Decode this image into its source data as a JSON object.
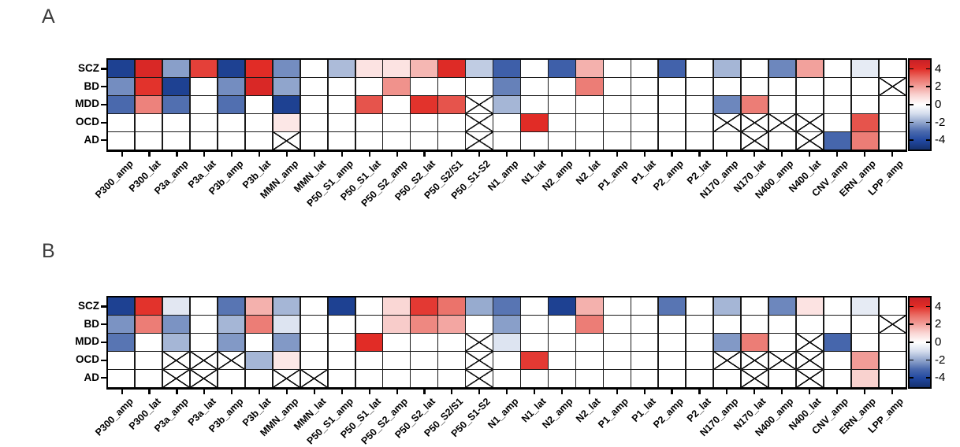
{
  "figure": {
    "background": "#ffffff",
    "crossed_cell_meaning": "cell marked with a diagonal X cross (no data / not significant)"
  },
  "colormap": {
    "description": "diverging red-white-blue heatmap scale",
    "stops": [
      [
        -5,
        "#16316e"
      ],
      [
        -4,
        "#2148a1"
      ],
      [
        -3,
        "#4a69ad"
      ],
      [
        -2,
        "#90a5cc"
      ],
      [
        -1,
        "#d5dded"
      ],
      [
        0,
        "#ffffff"
      ],
      [
        1,
        "#fad7d5"
      ],
      [
        2,
        "#f2a19c"
      ],
      [
        3,
        "#ea6e66"
      ],
      [
        4,
        "#e12c26"
      ],
      [
        5,
        "#c72027"
      ]
    ]
  },
  "chart_data": [
    {
      "type": "heatmap",
      "panel_label": "A",
      "legend_position": "right",
      "grid": true,
      "y_labels": [
        "SCZ",
        "BD",
        "MDD",
        "OCD",
        "AD"
      ],
      "x_labels": [
        "P300_amp",
        "P300_lat",
        "P3a_amp",
        "P3a_lat",
        "P3b_amp",
        "P3b_lat",
        "MMN_amp",
        "MMN_lat",
        "P50_S1_amp",
        "P50_S1_lat",
        "P50_S2_amp",
        "P50_S2_lat",
        "P50_S2/S1",
        "P50_S1-S2",
        "N1_amp",
        "N1_lat",
        "N2_amp",
        "N2_lat",
        "P1_amp",
        "P1_lat",
        "P2_amp",
        "P2_lat",
        "N170_amp",
        "N170_lat",
        "N400_amp",
        "N400_lat",
        "CNV_amp",
        "ERN_amp",
        "LPP_amp"
      ],
      "values": [
        [
          -4.3,
          4.3,
          -2.1,
          3.7,
          -4.3,
          4.0,
          -2.4,
          0,
          -1.6,
          0.7,
          0.7,
          1.6,
          4.1,
          -1.3,
          -3.3,
          0,
          -3.3,
          1.7,
          0,
          0,
          -3.2,
          0,
          -1.7,
          0,
          -2.5,
          2.0,
          0,
          -0.6,
          0
        ],
        [
          -2.4,
          3.9,
          -4.3,
          0,
          -2.4,
          4.3,
          -2.0,
          0,
          0,
          0,
          2.3,
          0,
          0,
          0,
          -2.6,
          0,
          0,
          2.7,
          0,
          0,
          0,
          0,
          0,
          0,
          0,
          0,
          0,
          0,
          "x"
        ],
        [
          -3.0,
          2.6,
          -2.9,
          0,
          -2.9,
          0,
          -4.3,
          0,
          0,
          3.4,
          0,
          3.9,
          3.4,
          "x",
          -1.7,
          0,
          0,
          0,
          0,
          0,
          0,
          0,
          -2.5,
          2.7,
          0,
          0,
          0,
          0,
          0
        ],
        [
          0,
          0,
          0,
          0,
          0,
          0,
          0.6,
          0,
          0,
          0,
          0,
          0,
          0,
          "x",
          0,
          4.0,
          0,
          0,
          0,
          0,
          0,
          0,
          "x",
          "x",
          "x",
          "x",
          0,
          3.4,
          0
        ],
        [
          0,
          0,
          0,
          0,
          0,
          0,
          "x",
          0,
          0,
          0,
          0,
          0,
          0,
          "x",
          0,
          0,
          0,
          0,
          0,
          0,
          0,
          0,
          0,
          "x",
          0,
          "x",
          -3.1,
          2.7,
          0
        ]
      ],
      "colorbar": {
        "tick_labels": [
          "4",
          "2",
          "0",
          "-2",
          "-4"
        ],
        "tick_values": [
          4,
          2,
          0,
          -2,
          -4
        ],
        "range": [
          -5,
          5
        ]
      }
    },
    {
      "type": "heatmap",
      "panel_label": "B",
      "legend_position": "right",
      "grid": true,
      "y_labels": [
        "SCZ",
        "BD",
        "MDD",
        "OCD",
        "AD"
      ],
      "x_labels": [
        "P300_amp",
        "P300_lat",
        "P3a_amp",
        "P3a_lat",
        "P3b_amp",
        "P3b_lat",
        "MMN_amp",
        "MMN_lat",
        "P50_S1_amp",
        "P50_S1_lat",
        "P50_S2_amp",
        "P50_S2_lat",
        "P50_S2/S1",
        "P50_S1-S2",
        "N1_amp",
        "N1_lat",
        "N2_amp",
        "N2_lat",
        "P1_amp",
        "P1_lat",
        "P2_amp",
        "P2_lat",
        "N170_amp",
        "N170_lat",
        "N400_amp",
        "N400_lat",
        "CNV_amp",
        "ERN_amp",
        "LPP_amp"
      ],
      "values": [
        [
          -4.3,
          3.9,
          -0.7,
          0,
          -2.8,
          1.7,
          -1.7,
          0,
          -4.3,
          0,
          1.0,
          3.8,
          2.9,
          -1.9,
          -2.8,
          0,
          -4.3,
          1.7,
          0,
          0,
          -2.8,
          0,
          -1.7,
          0,
          -2.5,
          0.7,
          0,
          -0.6,
          0
        ],
        [
          -2.3,
          2.7,
          -2.3,
          0,
          -1.7,
          2.7,
          -0.8,
          0,
          0,
          0,
          1.2,
          2.5,
          1.9,
          0,
          -2.1,
          0,
          0,
          2.7,
          0,
          0,
          0,
          0,
          0,
          0,
          0,
          0,
          0,
          0,
          "x"
        ],
        [
          -2.8,
          0,
          -1.7,
          0,
          -2.2,
          0,
          -2.2,
          0,
          0,
          4.0,
          0,
          0,
          0,
          "x",
          -0.8,
          0,
          0,
          0,
          0,
          0,
          0,
          0,
          -2.2,
          2.7,
          0,
          "x",
          -3.1,
          0,
          0
        ],
        [
          0,
          0,
          "x",
          "x",
          "x",
          -1.7,
          0.6,
          0,
          0,
          0,
          0,
          0,
          0,
          "x",
          0,
          3.8,
          0,
          0,
          0,
          0,
          0,
          0,
          "x",
          "x",
          "x",
          "x",
          0,
          2.1,
          0
        ],
        [
          0,
          0,
          "x",
          "x",
          0,
          0,
          "x",
          "x",
          0,
          0,
          0,
          0,
          0,
          "x",
          0,
          0,
          0,
          0,
          0,
          0,
          0,
          0,
          0,
          "x",
          0,
          "x",
          0,
          1.1,
          0
        ]
      ],
      "colorbar": {
        "tick_labels": [
          "4",
          "2",
          "0",
          "-2",
          "-4"
        ],
        "tick_values": [
          4,
          2,
          0,
          -2,
          -4
        ],
        "range": [
          -5,
          5
        ]
      }
    }
  ]
}
